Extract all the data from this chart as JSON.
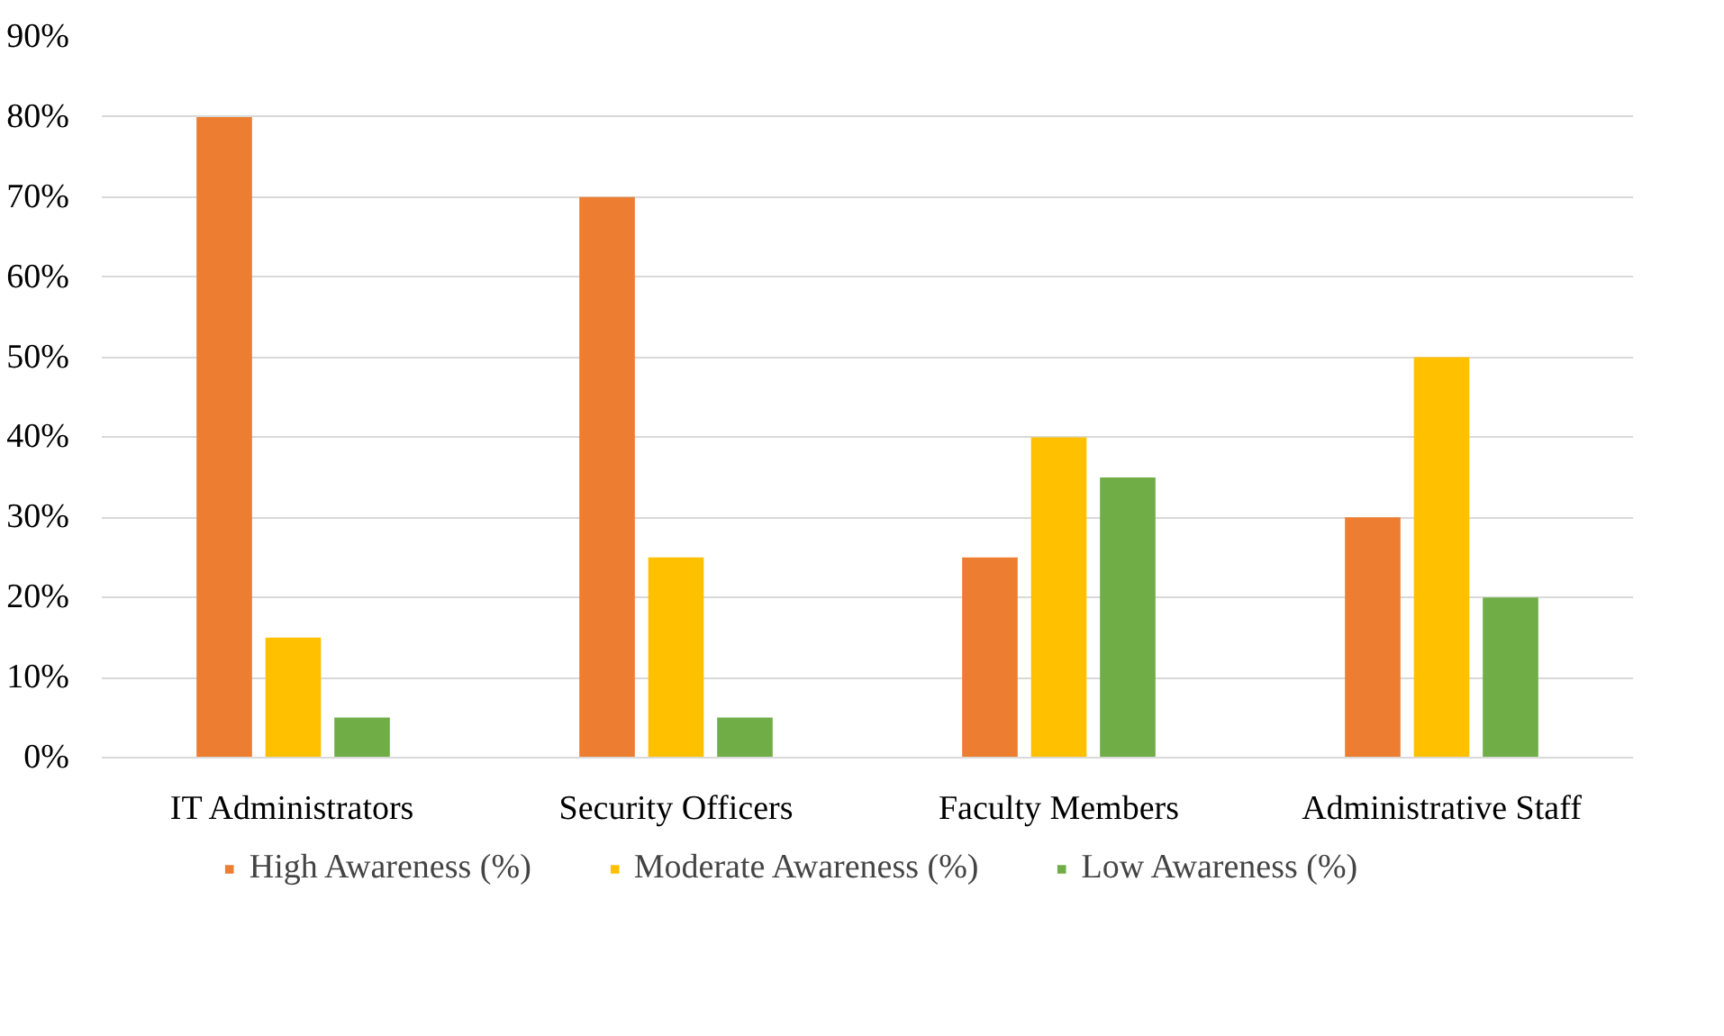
{
  "chart_data": {
    "type": "bar",
    "categories": [
      "IT Administrators",
      "Security Officers",
      "Faculty Members",
      "Administrative Staff"
    ],
    "series": [
      {
        "name": "High Awareness (%)",
        "color": "#ed7d31",
        "values": [
          80,
          70,
          25,
          30
        ]
      },
      {
        "name": "Moderate Awareness (%)",
        "color": "#ffc000",
        "values": [
          15,
          25,
          40,
          50
        ]
      },
      {
        "name": "Low Awareness (%)",
        "color": "#70ad47",
        "values": [
          5,
          5,
          35,
          20
        ]
      }
    ],
    "ylim": [
      0,
      90
    ],
    "yticks": [
      {
        "value": 0,
        "label": "0%"
      },
      {
        "value": 10,
        "label": "10%"
      },
      {
        "value": 20,
        "label": "20%"
      },
      {
        "value": 30,
        "label": "30%"
      },
      {
        "value": 40,
        "label": "40%"
      },
      {
        "value": 50,
        "label": "50%"
      },
      {
        "value": 60,
        "label": "60%"
      },
      {
        "value": 70,
        "label": "70%"
      },
      {
        "value": 80,
        "label": "80%"
      },
      {
        "value": 90,
        "label": "90%"
      }
    ],
    "grid": "y",
    "legend": "bottom"
  }
}
